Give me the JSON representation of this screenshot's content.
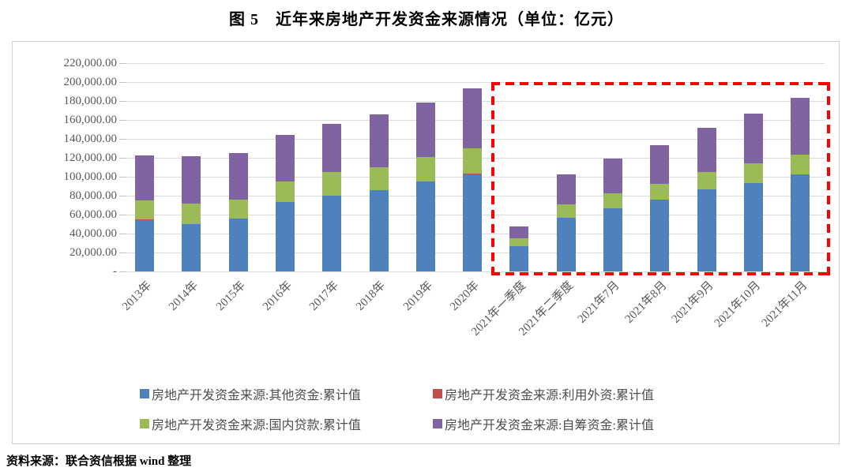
{
  "title": "图 5　近年来房地产开发资金来源情况（单位：亿元）",
  "source_note": "资料来源：联合资信根据 wind 整理",
  "colors": {
    "series_other": "#4F81BD",
    "series_foreign": "#C0504D",
    "series_loans": "#9BBB59",
    "series_self": "#8064A2",
    "highlight_box": "#FF0000",
    "gridline": "#DCDCDC",
    "axis_text": "#595959"
  },
  "chart_data": {
    "type": "bar",
    "stacked": true,
    "unit": "亿元",
    "title": "图 5　近年来房地产开发资金来源情况（单位：亿元）",
    "xlabel": "",
    "ylabel": "",
    "ylim": [
      0,
      220000
    ],
    "y_tick_step": 20000,
    "y_tick_labels": [
      "-",
      "20,000.00",
      "40,000.00",
      "60,000.00",
      "80,000.00",
      "100,000.00",
      "120,000.00",
      "140,000.00",
      "160,000.00",
      "180,000.00",
      "200,000.00",
      "220,000.00"
    ],
    "grid": true,
    "legend_position": "bottom",
    "categories": [
      "2013年",
      "2014年",
      "2015年",
      "2016年",
      "2017年",
      "2018年",
      "2019年",
      "2020年",
      "2021年一季度",
      "2021年二季度",
      "2021年7月",
      "2021年8月",
      "2021年9月",
      "2021年10月",
      "2021年11月"
    ],
    "series": [
      {
        "name": "房地产开发资金来源:其他资金:累计值",
        "color": "#4F81BD",
        "values": [
          54491,
          49689,
          55655,
          73429,
          79770,
          86019,
          95046,
          102870,
          26386,
          56992,
          66446,
          75617,
          86685,
          93500,
          102700
        ]
      },
      {
        "name": "房地产开发资金来源:利用外资:累计值",
        "color": "#C0504D",
        "values": [
          534,
          639,
          297,
          140,
          168,
          108,
          176,
          192,
          18,
          36,
          43,
          62,
          72,
          81,
          96
        ]
      },
      {
        "name": "房地产开发资金来源:国内贷款:累计值",
        "color": "#9BBB59",
        "values": [
          19673,
          21243,
          20214,
          21512,
          25242,
          24005,
          25229,
          26676,
          8422,
          13465,
          15661,
          16696,
          17817,
          20500,
          20800
        ]
      },
      {
        "name": "房地产开发资金来源:自筹资金:累计值",
        "color": "#8064A2",
        "values": [
          47425,
          50420,
          49038,
          49133,
          50872,
          55831,
          58158,
          63377,
          12639,
          32405,
          36820,
          41024,
          46912,
          52600,
          59800
        ]
      }
    ],
    "stack_order_bottom_to_top": [
      "其他资金",
      "利用外资",
      "国内贷款",
      "自筹资金"
    ],
    "annotation": {
      "type": "dashed-rectangle",
      "color": "#FF0000",
      "from_category": "2021年一季度",
      "to_category": "2021年11月"
    }
  }
}
